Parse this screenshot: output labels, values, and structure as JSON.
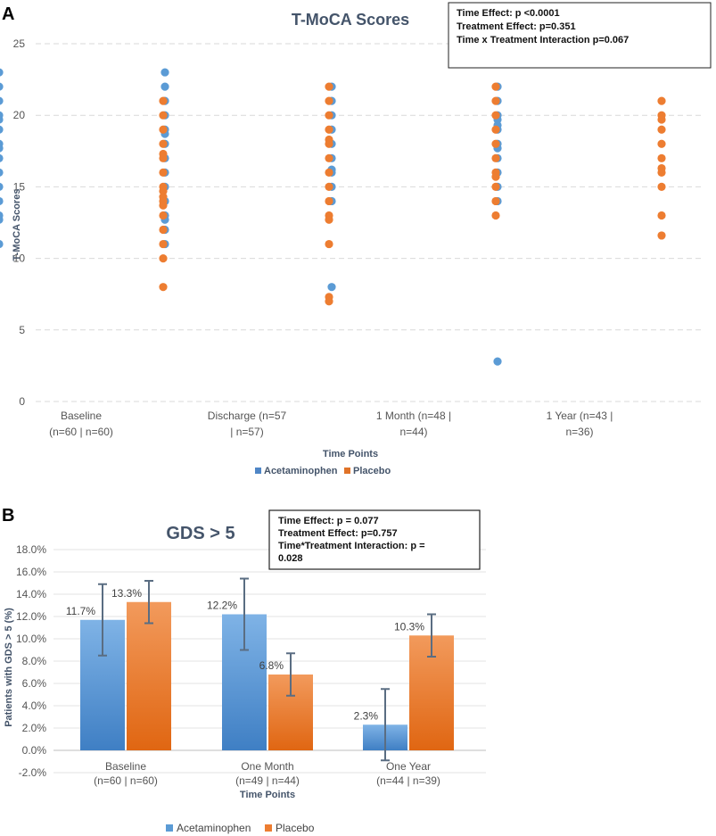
{
  "figure": {
    "panel_a_label": "A",
    "panel_b_label": "B"
  },
  "chart_data": [
    {
      "type": "scatter",
      "title": "T-MoCA Scores",
      "xlabel": "Time Points",
      "ylabel": "T-MoCA Scores",
      "ylim": [
        0,
        25
      ],
      "yticks": [
        0,
        5,
        10,
        15,
        20,
        25
      ],
      "categories": [
        [
          "Baseline",
          "(n=60 | n=60)"
        ],
        [
          "Discharge (n=57",
          "| n=57)"
        ],
        [
          "1 Month (n=48 |",
          "n=44)"
        ],
        [
          "1 Year (n=43 |",
          "n=36)"
        ]
      ],
      "legend": [
        "Acetaminophen",
        "Placebo"
      ],
      "legend_position": "bottom",
      "annotation": [
        "Time Effect: p <0.0001",
        "Treatment Effect: p=0.351",
        "Time x Treatment Interaction p=0.067"
      ],
      "series": [
        {
          "name": "Acetaminophen",
          "color": "#5b9bd5",
          "points": [
            [
              23,
              22,
              21,
              20,
              19.7,
              19,
              18,
              17.7,
              17,
              16,
              15,
              14,
              13,
              12.7,
              11
            ],
            [
              23,
              22,
              21,
              20,
              19,
              18.7,
              18,
              17,
              16,
              15,
              14,
              13,
              12.7,
              12,
              11
            ],
            [
              22,
              21,
              20,
              19,
              18,
              17,
              16.2,
              16,
              15,
              14,
              8
            ],
            [
              22,
              21,
              20,
              19.7,
              19.3,
              19,
              18,
              17.7,
              17,
              16,
              15,
              14,
              2.8
            ]
          ]
        },
        {
          "name": "Placebo",
          "color": "#ed7d31",
          "points": [
            [
              21,
              20,
              19,
              18,
              17.3,
              17,
              16,
              15,
              14.7,
              14.3,
              14,
              13.7,
              13,
              12,
              11,
              10,
              8
            ],
            [
              22,
              21,
              20,
              19,
              18.3,
              18,
              17,
              16,
              15,
              14,
              13,
              12.7,
              11,
              7.3,
              7
            ],
            [
              22,
              21,
              20,
              19,
              18,
              17,
              16,
              15.7,
              15,
              14,
              13
            ],
            [
              21,
              20,
              19.7,
              19,
              18,
              17,
              16.3,
              16,
              15,
              13,
              11.6
            ]
          ]
        }
      ]
    },
    {
      "type": "bar",
      "title": "GDS > 5",
      "xlabel": "Time Points",
      "ylabel": "Patients with GDS > 5 (%)",
      "ylim": [
        -2,
        18
      ],
      "yticks": [
        "-2.0%",
        "0.0%",
        "2.0%",
        "4.0%",
        "6.0%",
        "8.0%",
        "10.0%",
        "12.0%",
        "14.0%",
        "16.0%",
        "18.0%"
      ],
      "categories": [
        [
          "Baseline",
          "(n=60 | n=60)"
        ],
        [
          "One Month",
          "(n=49 | n=44)"
        ],
        [
          "One Year",
          "(n=44 | n=39)"
        ]
      ],
      "legend": [
        "Acetaminophen",
        "Placebo"
      ],
      "legend_position": "bottom",
      "annotation": [
        "Time Effect: p = 0.077",
        "Treatment Effect: p=0.757",
        "Time*Treatment Interaction: p =",
        "0.028"
      ],
      "series": [
        {
          "name": "Acetaminophen",
          "color": "#5b9bd5",
          "values": [
            11.7,
            12.2,
            2.3
          ],
          "labels": [
            "11.7%",
            "12.2%",
            "2.3%"
          ],
          "error_low": [
            8.5,
            9.0,
            -0.9
          ],
          "error_high": [
            14.9,
            15.4,
            5.5
          ]
        },
        {
          "name": "Placebo",
          "color": "#ed7d31",
          "values": [
            13.3,
            6.8,
            10.3
          ],
          "labels": [
            "13.3%",
            "6.8%",
            "10.3%"
          ],
          "error_low": [
            11.4,
            4.9,
            8.4
          ],
          "error_high": [
            15.2,
            8.7,
            12.2
          ]
        }
      ]
    }
  ]
}
